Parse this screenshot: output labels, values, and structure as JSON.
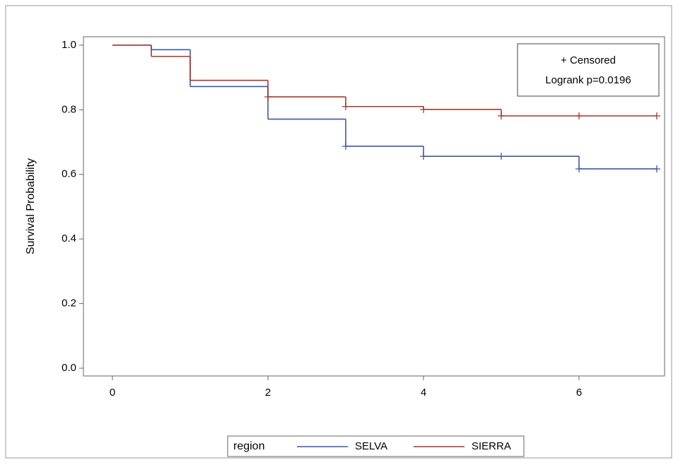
{
  "chart_data": {
    "type": "step",
    "ylabel": "Survival Probability",
    "xlim": [
      -0.373,
      7.1
    ],
    "xticks": [
      0,
      2,
      4,
      6
    ],
    "ylim": [
      -0.024,
      1.026
    ],
    "yticks": [
      {
        "value": 0,
        "label": "0.0"
      },
      0.2,
      0.4,
      0.6,
      0.8,
      {
        "value": 1,
        "label": "1.0"
      }
    ],
    "annotations": [
      "+ Censored",
      "Logrank p=0.0196"
    ],
    "legend_title": "region",
    "series": [
      {
        "name": "SELVA",
        "color": "#3a59a8",
        "x": [
          0,
          0.5,
          1,
          2,
          3,
          4,
          6,
          7
        ],
        "values": [
          1,
          0.986,
          0.872,
          0.771,
          0.687,
          0.656,
          0.617,
          0.617
        ],
        "censored": {
          "x": [
            3,
            4,
            5,
            6,
            7
          ],
          "values": [
            0.687,
            0.656,
            0.656,
            0.617,
            0.617
          ]
        }
      },
      {
        "name": "SIERRA",
        "color": "#a5382c",
        "x": [
          0,
          0.5,
          1,
          2,
          3,
          4,
          5,
          7
        ],
        "values": [
          1,
          0.965,
          0.891,
          0.84,
          0.81,
          0.801,
          0.781,
          0.781
        ],
        "censored": {
          "x": [
            2,
            3,
            4,
            5,
            6,
            7
          ],
          "values": [
            0.84,
            0.81,
            0.801,
            0.781,
            0.781,
            0.781
          ]
        }
      }
    ]
  }
}
